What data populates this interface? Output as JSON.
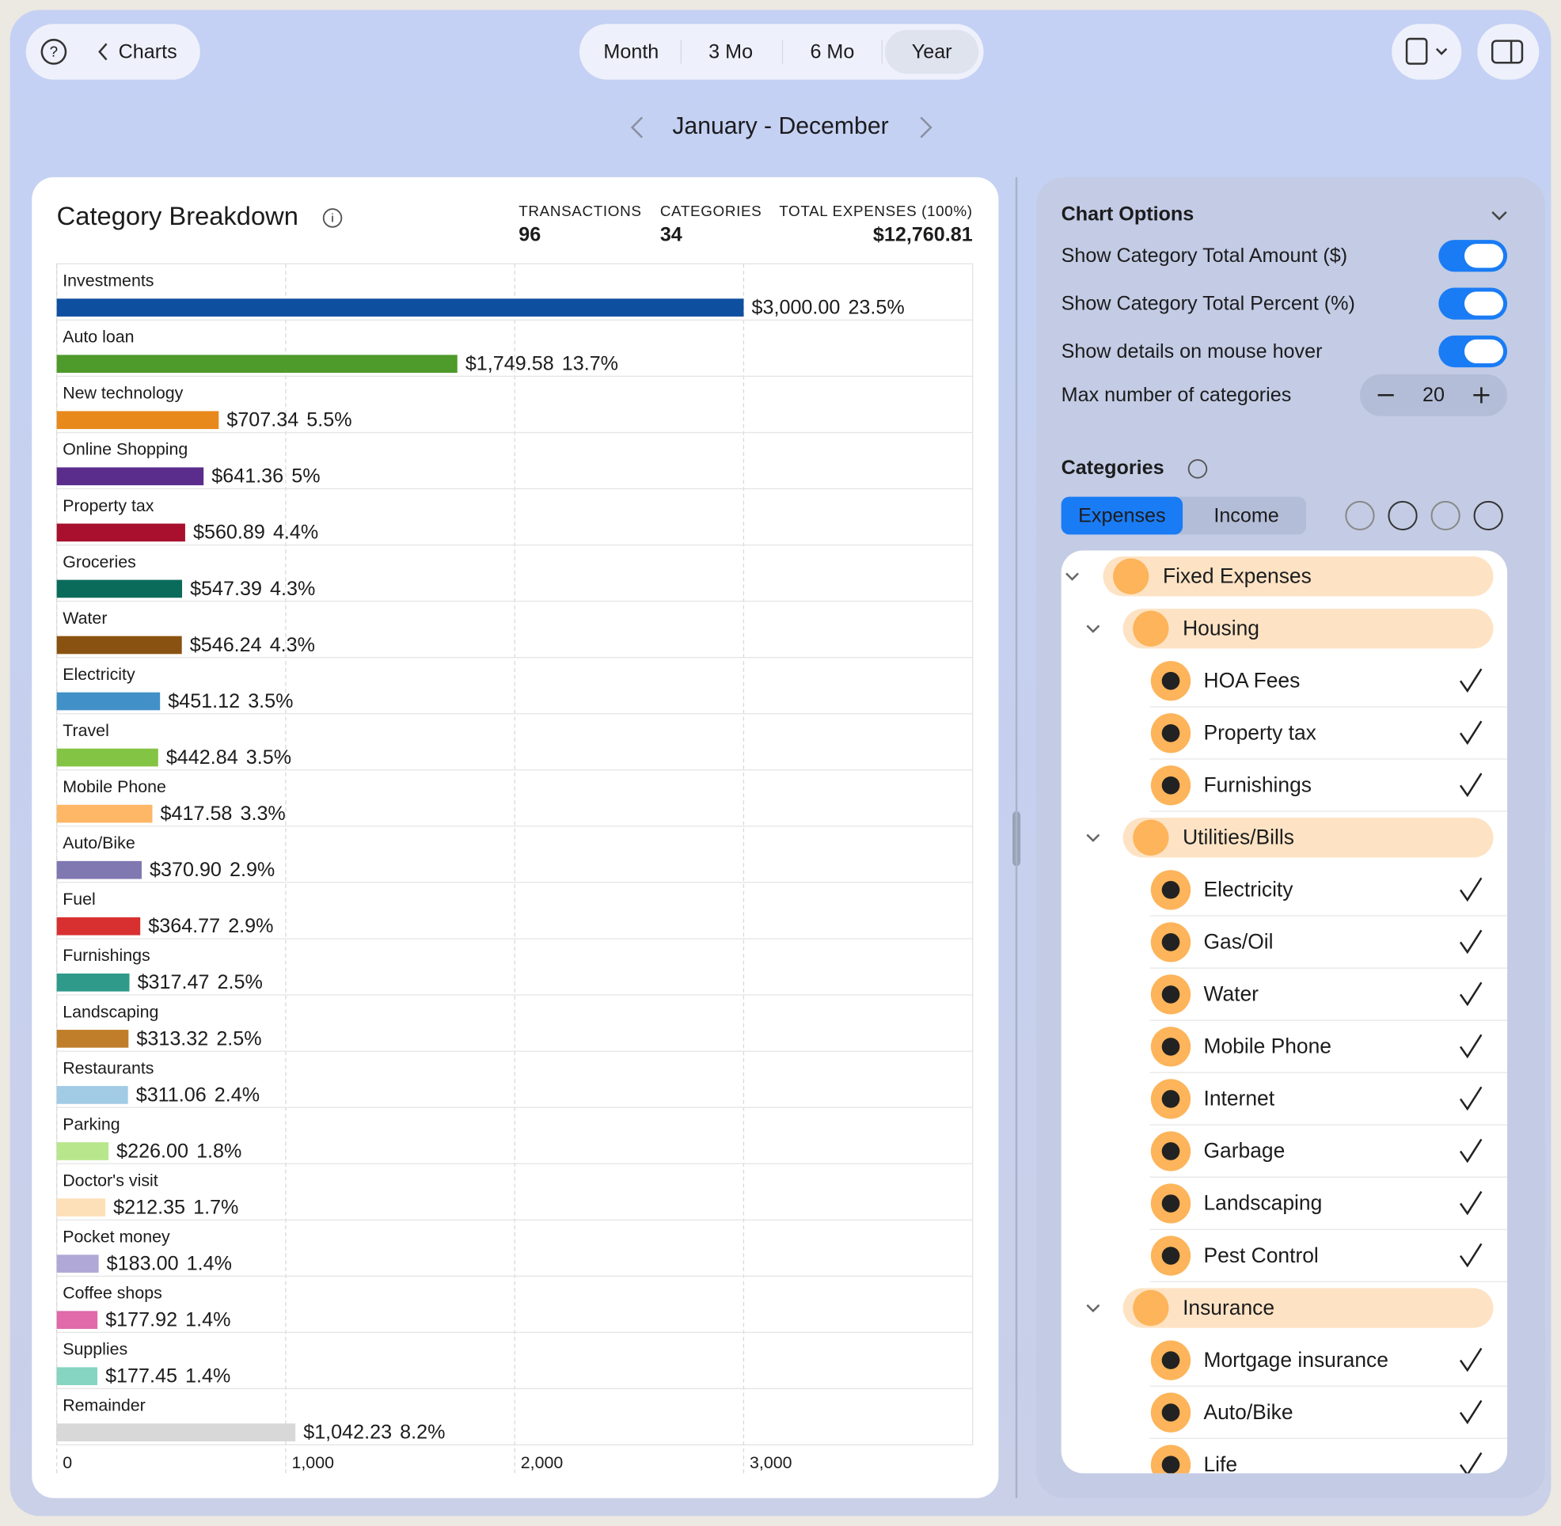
{
  "toolbar": {
    "back": "Charts",
    "periods": [
      "Month",
      "3 Mo",
      "6 Mo",
      "Year"
    ],
    "selected_period": 3,
    "date_range": "January - December"
  },
  "card": {
    "title": "Category Breakdown",
    "stats": [
      {
        "label": "TRANSACTIONS",
        "value": "96"
      },
      {
        "label": "CATEGORIES",
        "value": "34"
      },
      {
        "label": "TOTAL EXPENSES (100%)",
        "value": "$12,760.81"
      }
    ]
  },
  "chart_data": {
    "type": "hbar",
    "categories": [
      "Investments",
      "Auto loan",
      "New technology",
      "Online Shopping",
      "Property tax",
      "Groceries",
      "Water",
      "Electricity",
      "Travel",
      "Mobile Phone",
      "Auto/Bike",
      "Fuel",
      "Furnishings",
      "Landscaping",
      "Restaurants",
      "Parking",
      "Doctor's visit",
      "Pocket money",
      "Coffee shops",
      "Supplies",
      "Remainder"
    ],
    "values": [
      3000.0,
      1749.58,
      707.34,
      641.36,
      560.89,
      547.39,
      546.24,
      451.12,
      442.84,
      417.58,
      370.9,
      364.77,
      317.47,
      313.32,
      311.06,
      226.0,
      212.35,
      183.0,
      177.92,
      177.45,
      1042.23
    ],
    "value_labels": [
      "$3,000.00",
      "$1,749.58",
      "$707.34",
      "$641.36",
      "$560.89",
      "$547.39",
      "$546.24",
      "$451.12",
      "$442.84",
      "$417.58",
      "$370.90",
      "$364.77",
      "$317.47",
      "$313.32",
      "$311.06",
      "$226.00",
      "$212.35",
      "$183.00",
      "$177.92",
      "$177.45",
      "$1,042.23"
    ],
    "percent_labels": [
      "23.5%",
      "13.7%",
      "5.5%",
      "5%",
      "4.4%",
      "4.3%",
      "4.3%",
      "3.5%",
      "3.5%",
      "3.3%",
      "2.9%",
      "2.9%",
      "2.5%",
      "2.5%",
      "2.4%",
      "1.8%",
      "1.7%",
      "1.4%",
      "1.4%",
      "1.4%",
      "8.2%"
    ],
    "colors": [
      "#0f4fa0",
      "#4e9a2a",
      "#e8891c",
      "#5a2d8c",
      "#a8102e",
      "#0b6b5a",
      "#8a5210",
      "#4290c8",
      "#84c444",
      "#fdb766",
      "#8078b0",
      "#d83030",
      "#2f9a8a",
      "#c07e2a",
      "#a2cbe6",
      "#b8e68c",
      "#fde0b8",
      "#b0a8d6",
      "#e06aaa",
      "#86d4c2",
      "#d8d8d8"
    ],
    "xlim": [
      0,
      4000
    ],
    "xticks": [
      0,
      {
        "value": 1000,
        "label": "1,000"
      },
      {
        "value": 2000,
        "label": "2,000"
      },
      {
        "value": 3000,
        "label": "3,000"
      }
    ],
    "grid": true
  },
  "options": {
    "title": "Chart Options",
    "toggles": [
      {
        "label": "Show Category Total Amount ($)",
        "on": true
      },
      {
        "label": "Show Category Total Percent (%)",
        "on": true
      },
      {
        "label": "Show details on mouse hover",
        "on": true
      }
    ],
    "max_label": "Max number of categories",
    "max_value": 20
  },
  "categories_panel": {
    "title": "Categories",
    "tabs": [
      "Expenses",
      "Income"
    ],
    "selected_tab": 0,
    "tree": [
      {
        "label": "Fixed Expenses",
        "level": 0
      },
      {
        "label": "Housing",
        "level": 1
      },
      {
        "label": "HOA Fees",
        "level": 2,
        "checked": true
      },
      {
        "label": "Property tax",
        "level": 2,
        "checked": true
      },
      {
        "label": "Furnishings",
        "level": 2,
        "checked": true
      },
      {
        "label": "Utilities/Bills",
        "level": 1
      },
      {
        "label": "Electricity",
        "level": 2,
        "checked": true
      },
      {
        "label": "Gas/Oil",
        "level": 2,
        "checked": true
      },
      {
        "label": "Water",
        "level": 2,
        "checked": true
      },
      {
        "label": "Mobile Phone",
        "level": 2,
        "checked": true
      },
      {
        "label": "Internet",
        "level": 2,
        "checked": true
      },
      {
        "label": "Garbage",
        "level": 2,
        "checked": true
      },
      {
        "label": "Landscaping",
        "level": 2,
        "checked": true
      },
      {
        "label": "Pest Control",
        "level": 2,
        "checked": true
      },
      {
        "label": "Insurance",
        "level": 1
      },
      {
        "label": "Mortgage insurance",
        "level": 2,
        "checked": true
      },
      {
        "label": "Auto/Bike",
        "level": 2,
        "checked": true
      },
      {
        "label": "Life",
        "level": 2,
        "checked": true
      }
    ]
  }
}
